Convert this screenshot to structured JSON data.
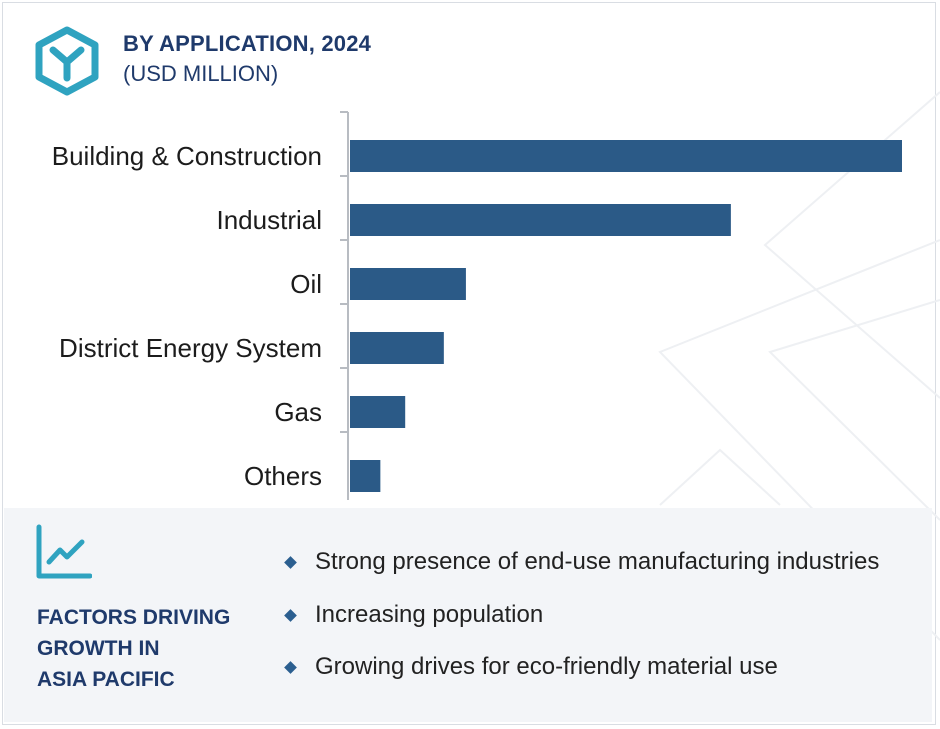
{
  "header": {
    "title": "BY APPLICATION, 2024",
    "subtitle": "(USD MILLION)"
  },
  "chart_data": {
    "type": "bar",
    "orientation": "horizontal",
    "title": "BY APPLICATION, 2024",
    "subtitle": "(USD MILLION)",
    "categories": [
      "Building & Construction",
      "Industrial",
      "Oil",
      "District Energy System",
      "Gas",
      "Others"
    ],
    "values": [
      100,
      69,
      21,
      17,
      10,
      5.5
    ],
    "value_scale": "relative",
    "xlabel": "",
    "ylabel": "",
    "grid": false,
    "legend": "none",
    "bar_color": "#2b5a87"
  },
  "factors": {
    "title_lines": [
      "FACTORS DRIVING",
      "GROWTH IN",
      "ASIA PACIFIC"
    ],
    "bullets": [
      "Strong presence of end-use manufacturing industries",
      "Increasing population",
      "Growing drives for eco-friendly material use"
    ]
  },
  "colors": {
    "accent": "#2fa3c0",
    "title": "#1f3a6b",
    "bar": "#2b5a87",
    "panel": "#f3f5f8"
  },
  "icons": {
    "logo": "hexagon-y-logo-icon",
    "growth": "line-chart-growth-icon",
    "bullet": "diamond-bullet-icon"
  }
}
